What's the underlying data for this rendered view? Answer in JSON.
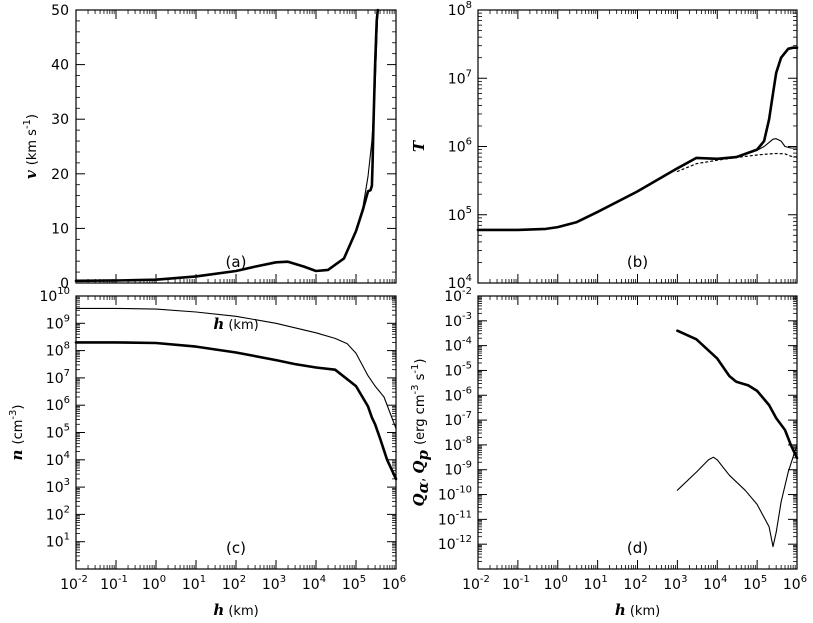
{
  "chart_data": [
    {
      "type": "line",
      "panel_label": "(a)",
      "xlabel_var": "h",
      "xlabel_unit": "(km)",
      "ylabel_var": "v",
      "ylabel_unit": "(km s",
      "ylabel_unit_sup": "-1",
      "ylabel_unit_end": ")",
      "xscale": "log",
      "yscale": "linear",
      "xlim": [
        0.01,
        1000000
      ],
      "ylim": [
        0,
        50
      ],
      "x_tick_labels_shown": false,
      "y_ticks": [
        0,
        10,
        20,
        30,
        40,
        50
      ],
      "y_tick_labels": [
        "0",
        "10",
        "20",
        "30",
        "40",
        "50"
      ],
      "series": [
        {
          "style": "thick",
          "x": [
            0.01,
            0.1,
            1,
            10,
            100,
            300,
            1000,
            2000,
            5000,
            10000,
            20000,
            50000,
            100000,
            150000,
            200000,
            230000,
            250000,
            260000,
            270000,
            300000,
            330000,
            350000
          ],
          "y": [
            0.4,
            0.45,
            0.6,
            1.2,
            2.2,
            3.0,
            3.8,
            3.9,
            3.0,
            2.2,
            2.4,
            4.5,
            9.5,
            13.5,
            16.8,
            17.0,
            17.8,
            22,
            28,
            40,
            48,
            52
          ]
        },
        {
          "style": "thin",
          "x": [
            0.01,
            0.1,
            1,
            10,
            100,
            300,
            1000,
            2000,
            5000,
            10000,
            20000,
            50000,
            100000,
            150000,
            200000,
            250000,
            300000,
            330000,
            350000,
            360000
          ],
          "y": [
            0.4,
            0.45,
            0.6,
            1.2,
            2.2,
            3.0,
            3.8,
            3.9,
            3.0,
            2.2,
            2.4,
            4.5,
            9.5,
            14.0,
            19.5,
            26,
            36,
            44,
            50,
            52
          ]
        }
      ]
    },
    {
      "type": "line",
      "panel_label": "(b)",
      "ylabel_var": "T",
      "xscale": "log",
      "yscale": "log",
      "xlim": [
        0.01,
        1000000
      ],
      "ylim": [
        10000,
        100000000
      ],
      "x_tick_labels_shown": false,
      "y_tick_labels": [
        {
          "base": "10",
          "exp": "4",
          "value": 10000
        },
        {
          "base": "10",
          "exp": "5",
          "value": 100000
        },
        {
          "base": "10",
          "exp": "6",
          "value": 1000000
        },
        {
          "base": "10",
          "exp": "7",
          "value": 10000000
        },
        {
          "base": "10",
          "exp": "8",
          "value": 100000000
        }
      ],
      "series": [
        {
          "style": "thick",
          "x": [
            0.01,
            0.1,
            0.5,
            1,
            3,
            10,
            100,
            1000,
            3000,
            10000,
            30000,
            100000,
            150000,
            200000,
            250000,
            300000,
            400000,
            600000,
            800000,
            1000000
          ],
          "y": [
            60000,
            60000,
            62000,
            66000,
            78000,
            110000,
            220000,
            480000,
            680000,
            660000,
            700000,
            900000,
            1200000,
            2500000,
            6000000,
            12000000,
            20000000,
            27000000,
            28000000,
            28000000
          ]
        },
        {
          "style": "thin",
          "x": [
            30000,
            100000,
            150000,
            200000,
            250000,
            300000,
            400000,
            500000,
            700000,
            1000000
          ],
          "y": [
            700000,
            880000,
            1000000,
            1150000,
            1280000,
            1300000,
            1200000,
            1000000,
            950000,
            950000
          ]
        },
        {
          "style": "dotted",
          "x": [
            1000,
            3000,
            10000,
            30000,
            100000,
            200000,
            300000,
            500000,
            700000,
            1000000
          ],
          "y": [
            430000,
            560000,
            630000,
            690000,
            750000,
            780000,
            790000,
            780000,
            720000,
            700000
          ]
        }
      ]
    },
    {
      "type": "line",
      "panel_label": "(c)",
      "xlabel_var": "h",
      "xlabel_unit": "(km)",
      "ylabel_var": "n",
      "ylabel_unit": "(cm",
      "ylabel_unit_sup": "-3",
      "ylabel_unit_end": ")",
      "xscale": "log",
      "yscale": "log",
      "xlim": [
        0.01,
        1000000
      ],
      "ylim": [
        1,
        10000000000
      ],
      "x_tick_labels": [
        {
          "base": "10",
          "exp": "-2"
        },
        {
          "base": "10",
          "exp": "-1"
        },
        {
          "base": "10",
          "exp": "0"
        },
        {
          "base": "10",
          "exp": "1"
        },
        {
          "base": "10",
          "exp": "2"
        },
        {
          "base": "10",
          "exp": "3"
        },
        {
          "base": "10",
          "exp": "4"
        },
        {
          "base": "10",
          "exp": "5"
        },
        {
          "base": "10",
          "exp": "6"
        }
      ],
      "y_tick_labels": [
        {
          "base": "10",
          "exp": "1"
        },
        {
          "base": "10",
          "exp": "2"
        },
        {
          "base": "10",
          "exp": "3"
        },
        {
          "base": "10",
          "exp": "4"
        },
        {
          "base": "10",
          "exp": "5"
        },
        {
          "base": "10",
          "exp": "6"
        },
        {
          "base": "10",
          "exp": "7"
        },
        {
          "base": "10",
          "exp": "8"
        },
        {
          "base": "10",
          "exp": "9"
        },
        {
          "base": "10",
          "exp": "10"
        }
      ],
      "series": [
        {
          "style": "thin",
          "x": [
            0.01,
            0.1,
            1,
            10,
            100,
            1000,
            10000,
            30000,
            60000,
            100000,
            200000,
            300000,
            500000,
            1000000
          ],
          "y": [
            3500000000,
            3500000000,
            3300000000,
            2600000000,
            1800000000,
            1000000000,
            450000000,
            280000000,
            180000000,
            80000000,
            12000000,
            5000000,
            2000000,
            140000
          ]
        },
        {
          "style": "thick",
          "x": [
            0.01,
            0.1,
            1,
            10,
            100,
            1000,
            3000,
            10000,
            30000,
            100000,
            200000,
            250000,
            300000,
            400000,
            600000,
            1000000
          ],
          "y": [
            200000000,
            200000000,
            190000000,
            140000000,
            85000000,
            45000000,
            32000000,
            24000000,
            20000000,
            5000000,
            900000,
            350000,
            200000,
            60000,
            10000,
            2000
          ]
        }
      ]
    },
    {
      "type": "line",
      "panel_label": "(d)",
      "xlabel_var": "h",
      "xlabel_unit": "(km)",
      "ylabel_var": "Q",
      "ylabel_sub_a": "α",
      "ylabel_sep": ",  ",
      "ylabel_sub_p": "p",
      "ylabel_unit": "(erg cm",
      "ylabel_unit_sup": "-3",
      "ylabel_unit_mid": " s",
      "ylabel_unit_sup2": "-1",
      "ylabel_unit_end": ")",
      "xscale": "log",
      "yscale": "log",
      "xlim": [
        0.01,
        1000000
      ],
      "ylim": [
        1e-13,
        0.01
      ],
      "x_tick_labels": [
        {
          "base": "10",
          "exp": "-2"
        },
        {
          "base": "10",
          "exp": "-1"
        },
        {
          "base": "10",
          "exp": "0"
        },
        {
          "base": "10",
          "exp": "1"
        },
        {
          "base": "10",
          "exp": "2"
        },
        {
          "base": "10",
          "exp": "3"
        },
        {
          "base": "10",
          "exp": "4"
        },
        {
          "base": "10",
          "exp": "5"
        },
        {
          "base": "10",
          "exp": "6"
        }
      ],
      "y_tick_labels": [
        {
          "base": "10",
          "exp": "-12"
        },
        {
          "base": "10",
          "exp": "-11"
        },
        {
          "base": "10",
          "exp": "-10"
        },
        {
          "base": "10",
          "exp": "-9"
        },
        {
          "base": "10",
          "exp": "-8"
        },
        {
          "base": "10",
          "exp": "-7"
        },
        {
          "base": "10",
          "exp": "-6"
        },
        {
          "base": "10",
          "exp": "-5"
        },
        {
          "base": "10",
          "exp": "-4"
        },
        {
          "base": "10",
          "exp": "-3"
        },
        {
          "base": "10",
          "exp": "-2"
        }
      ],
      "series": [
        {
          "style": "thick",
          "x": [
            1000,
            3000,
            10000,
            20000,
            30000,
            60000,
            100000,
            200000,
            300000,
            500000,
            700000,
            1000000
          ],
          "y": [
            0.0004,
            0.00018,
            3e-05,
            6e-06,
            3.5e-06,
            2.5e-06,
            1.5e-06,
            4e-07,
            1.2e-07,
            4e-08,
            1e-08,
            3e-09
          ]
        },
        {
          "style": "thin",
          "x": [
            1000,
            3000,
            6000,
            8000,
            10000,
            20000,
            50000,
            100000,
            200000,
            250000,
            300000,
            400000,
            600000,
            1000000
          ],
          "y": [
            1.5e-10,
            8e-10,
            2.5e-09,
            3.2e-09,
            2.5e-09,
            6e-10,
            1.5e-10,
            4e-11,
            5e-12,
            8e-13,
            3e-12,
            5e-11,
            8e-10,
            1e-08
          ]
        }
      ]
    }
  ]
}
